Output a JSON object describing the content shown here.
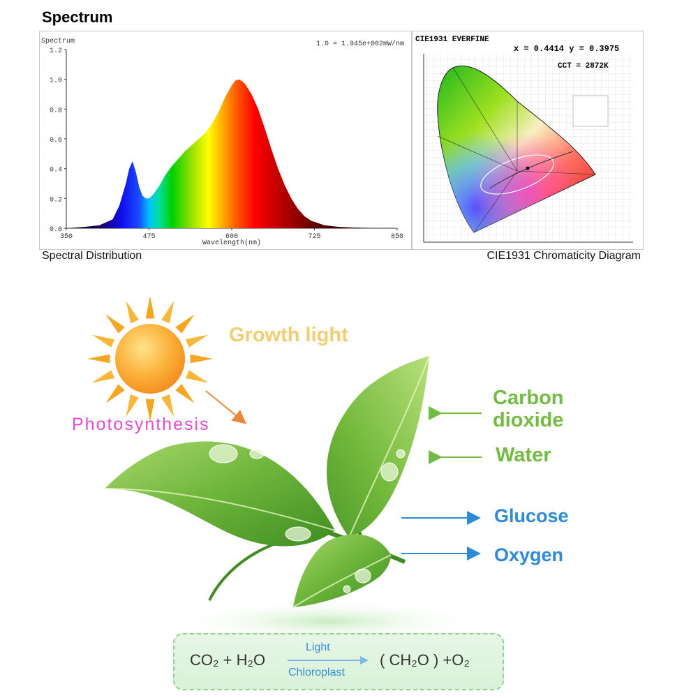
{
  "page_title": "Spectrum",
  "spectrum_chart": {
    "header": "Spectrum",
    "scale_note": "1.0 = 1.945e+002mW/nm",
    "caption": "Spectral Distribution"
  },
  "chart_data": {
    "type": "area",
    "title": "Spectrum",
    "xlabel": "Wavelength(nm)",
    "ylabel": "",
    "xlim": [
      350,
      850
    ],
    "ylim": [
      0,
      1.2
    ],
    "x_ticks": [
      "350",
      "475",
      "600",
      "725",
      "850"
    ],
    "y_ticks": [
      "0.0",
      "0.2",
      "0.4",
      "0.6",
      "0.8",
      "1.0",
      "1.2"
    ],
    "x": [
      350,
      380,
      400,
      420,
      430,
      440,
      445,
      450,
      455,
      460,
      465,
      470,
      475,
      480,
      490,
      500,
      510,
      520,
      530,
      540,
      550,
      560,
      570,
      580,
      590,
      600,
      605,
      610,
      615,
      620,
      630,
      640,
      650,
      660,
      670,
      680,
      690,
      700,
      710,
      720,
      740,
      760,
      780,
      800,
      820,
      850
    ],
    "values": [
      0.0,
      0.01,
      0.02,
      0.06,
      0.15,
      0.3,
      0.4,
      0.45,
      0.38,
      0.28,
      0.22,
      0.2,
      0.2,
      0.22,
      0.28,
      0.36,
      0.42,
      0.47,
      0.52,
      0.56,
      0.6,
      0.64,
      0.7,
      0.78,
      0.88,
      0.96,
      0.99,
      1.0,
      0.99,
      0.97,
      0.9,
      0.8,
      0.67,
      0.53,
      0.4,
      0.29,
      0.2,
      0.13,
      0.08,
      0.05,
      0.02,
      0.01,
      0.005,
      0.003,
      0.002,
      0.0
    ]
  },
  "cie_chart": {
    "header": "CIE1931  EVERFINE",
    "coords": "x = 0.4414  y = 0.3975",
    "cct": "CCT = 2872K",
    "caption": "CIE1931 Chromaticity Diagram"
  },
  "diagram": {
    "growth_light": "Growth light",
    "photosynthesis": "Photosynthesis",
    "inputs": [
      "Carbon",
      "dioxide",
      "Water"
    ],
    "outputs": [
      "Glucose",
      "Oxygen"
    ],
    "equation": {
      "left": "CO₂ + H₂O",
      "over_arrow": "Light",
      "under_arrow": "Chloroplast",
      "right": "( CH₂O ) +O₂"
    }
  },
  "colors": {
    "input_green": "#74bb44",
    "output_blue": "#2c8ad6",
    "growth_yellow": "#f3cd71",
    "photosynthesis_magenta": "#e34ad0"
  }
}
